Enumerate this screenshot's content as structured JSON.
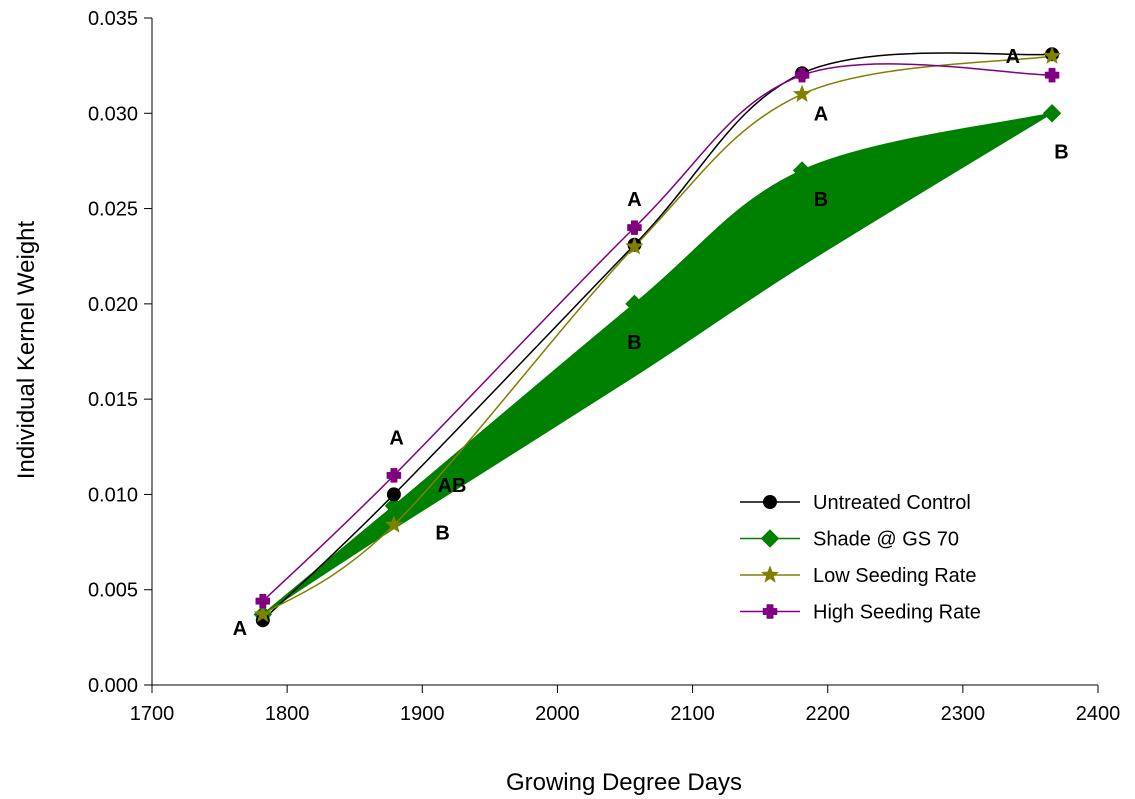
{
  "chart_data": {
    "type": "line",
    "xlabel": "Growing Degree Days",
    "ylabel": "Individual Kernel Weight",
    "xlim": [
      1700,
      2400
    ],
    "ylim": [
      0.0,
      0.035
    ],
    "x_ticks": [
      1700,
      1800,
      1900,
      2000,
      2100,
      2200,
      2300,
      2400
    ],
    "x_tick_labels": [
      "1700",
      "1800",
      "1900",
      "2000",
      "2100",
      "2200",
      "2300",
      "2400"
    ],
    "y_ticks": [
      0.0,
      0.005,
      0.01,
      0.015,
      0.02,
      0.025,
      0.03,
      0.035
    ],
    "y_tick_labels": [
      "0.000",
      "0.005",
      "0.010",
      "0.015",
      "0.020",
      "0.025",
      "0.030",
      "0.035"
    ],
    "grid": false,
    "legend_position": "bottom-right",
    "series": [
      {
        "name": "Untreated Control",
        "color": "#000000",
        "marker": "circle",
        "x": [
          1782,
          1879,
          2057,
          2181,
          2366
        ],
        "y": [
          0.0034,
          0.01,
          0.0231,
          0.0321,
          0.0331
        ]
      },
      {
        "name": "Shade @ GS 70",
        "color": "#008000",
        "marker": "diamond",
        "x": [
          1782,
          1879,
          2057,
          2181,
          2366
        ],
        "y": [
          0.0037,
          0.0094,
          0.02,
          0.027,
          0.03
        ],
        "band_lower": [
          0.0037,
          0.0082,
          0.0162,
          0.022,
          0.03
        ]
      },
      {
        "name": "Low Seeding Rate",
        "color": "#808000",
        "marker": "star",
        "x": [
          1782,
          1879,
          2057,
          2181,
          2366
        ],
        "y": [
          0.0037,
          0.0084,
          0.023,
          0.031,
          0.033
        ]
      },
      {
        "name": "High Seeding Rate",
        "color": "#800080",
        "marker": "plus",
        "x": [
          1782,
          1879,
          2057,
          2181,
          2366
        ],
        "y": [
          0.0044,
          0.011,
          0.024,
          0.032,
          0.032
        ]
      }
    ],
    "annotations": [
      {
        "text": "A",
        "x": 1765,
        "y": 0.003
      },
      {
        "text": "A",
        "x": 1881,
        "y": 0.013
      },
      {
        "text": "AB",
        "x": 1922,
        "y": 0.0105
      },
      {
        "text": "B",
        "x": 1915,
        "y": 0.008
      },
      {
        "text": "A",
        "x": 2057,
        "y": 0.0255
      },
      {
        "text": "B",
        "x": 2057,
        "y": 0.018
      },
      {
        "text": "A",
        "x": 2195,
        "y": 0.03
      },
      {
        "text": "B",
        "x": 2195,
        "y": 0.0255
      },
      {
        "text": "A",
        "x": 2337,
        "y": 0.033
      },
      {
        "text": "B",
        "x": 2373,
        "y": 0.028
      }
    ]
  }
}
